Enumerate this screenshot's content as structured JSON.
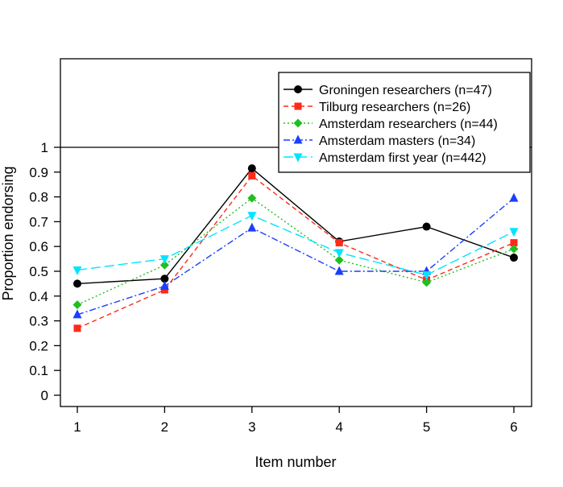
{
  "chart_data": {
    "type": "line",
    "title": "",
    "xlabel": "Item number",
    "ylabel": "Proportion endorsing",
    "x": [
      1,
      2,
      3,
      4,
      5,
      6
    ],
    "xticks": [
      "1",
      "2",
      "3",
      "4",
      "5",
      "6"
    ],
    "yticks": [
      "0",
      "0.1",
      "0.2",
      "0.3",
      "0.4",
      "0.5",
      "0.6",
      "0.7",
      "0.8",
      "0.9",
      "1"
    ],
    "ylim": [
      0,
      1
    ],
    "reference_line_y": 1,
    "grid": false,
    "legend_position": "top-right",
    "series": [
      {
        "name": "Groningen researchers (n=47)",
        "color": "#000000",
        "marker": "circle",
        "dash": "",
        "values": [
          0.45,
          0.47,
          0.915,
          0.62,
          0.68,
          0.555
        ]
      },
      {
        "name": "Tilburg researchers (n=26)",
        "color": "#ff2a1a",
        "marker": "square",
        "dash": "6,4",
        "values": [
          0.27,
          0.425,
          0.885,
          0.615,
          0.465,
          0.615
        ]
      },
      {
        "name": "Amsterdam researchers (n=44)",
        "color": "#1fbf1f",
        "marker": "diamond",
        "dash": "2,3",
        "values": [
          0.365,
          0.525,
          0.795,
          0.545,
          0.455,
          0.59
        ]
      },
      {
        "name": "Amsterdam masters (n=34)",
        "color": "#1a3fff",
        "marker": "triangle-up",
        "dash": "8,3,2,3",
        "values": [
          0.325,
          0.44,
          0.675,
          0.5,
          0.5,
          0.795
        ]
      },
      {
        "name": "Amsterdam first year (n=442)",
        "color": "#00e5ff",
        "marker": "triangle-down",
        "dash": "12,5",
        "values": [
          0.505,
          0.55,
          0.725,
          0.575,
          0.485,
          0.66
        ]
      }
    ]
  }
}
